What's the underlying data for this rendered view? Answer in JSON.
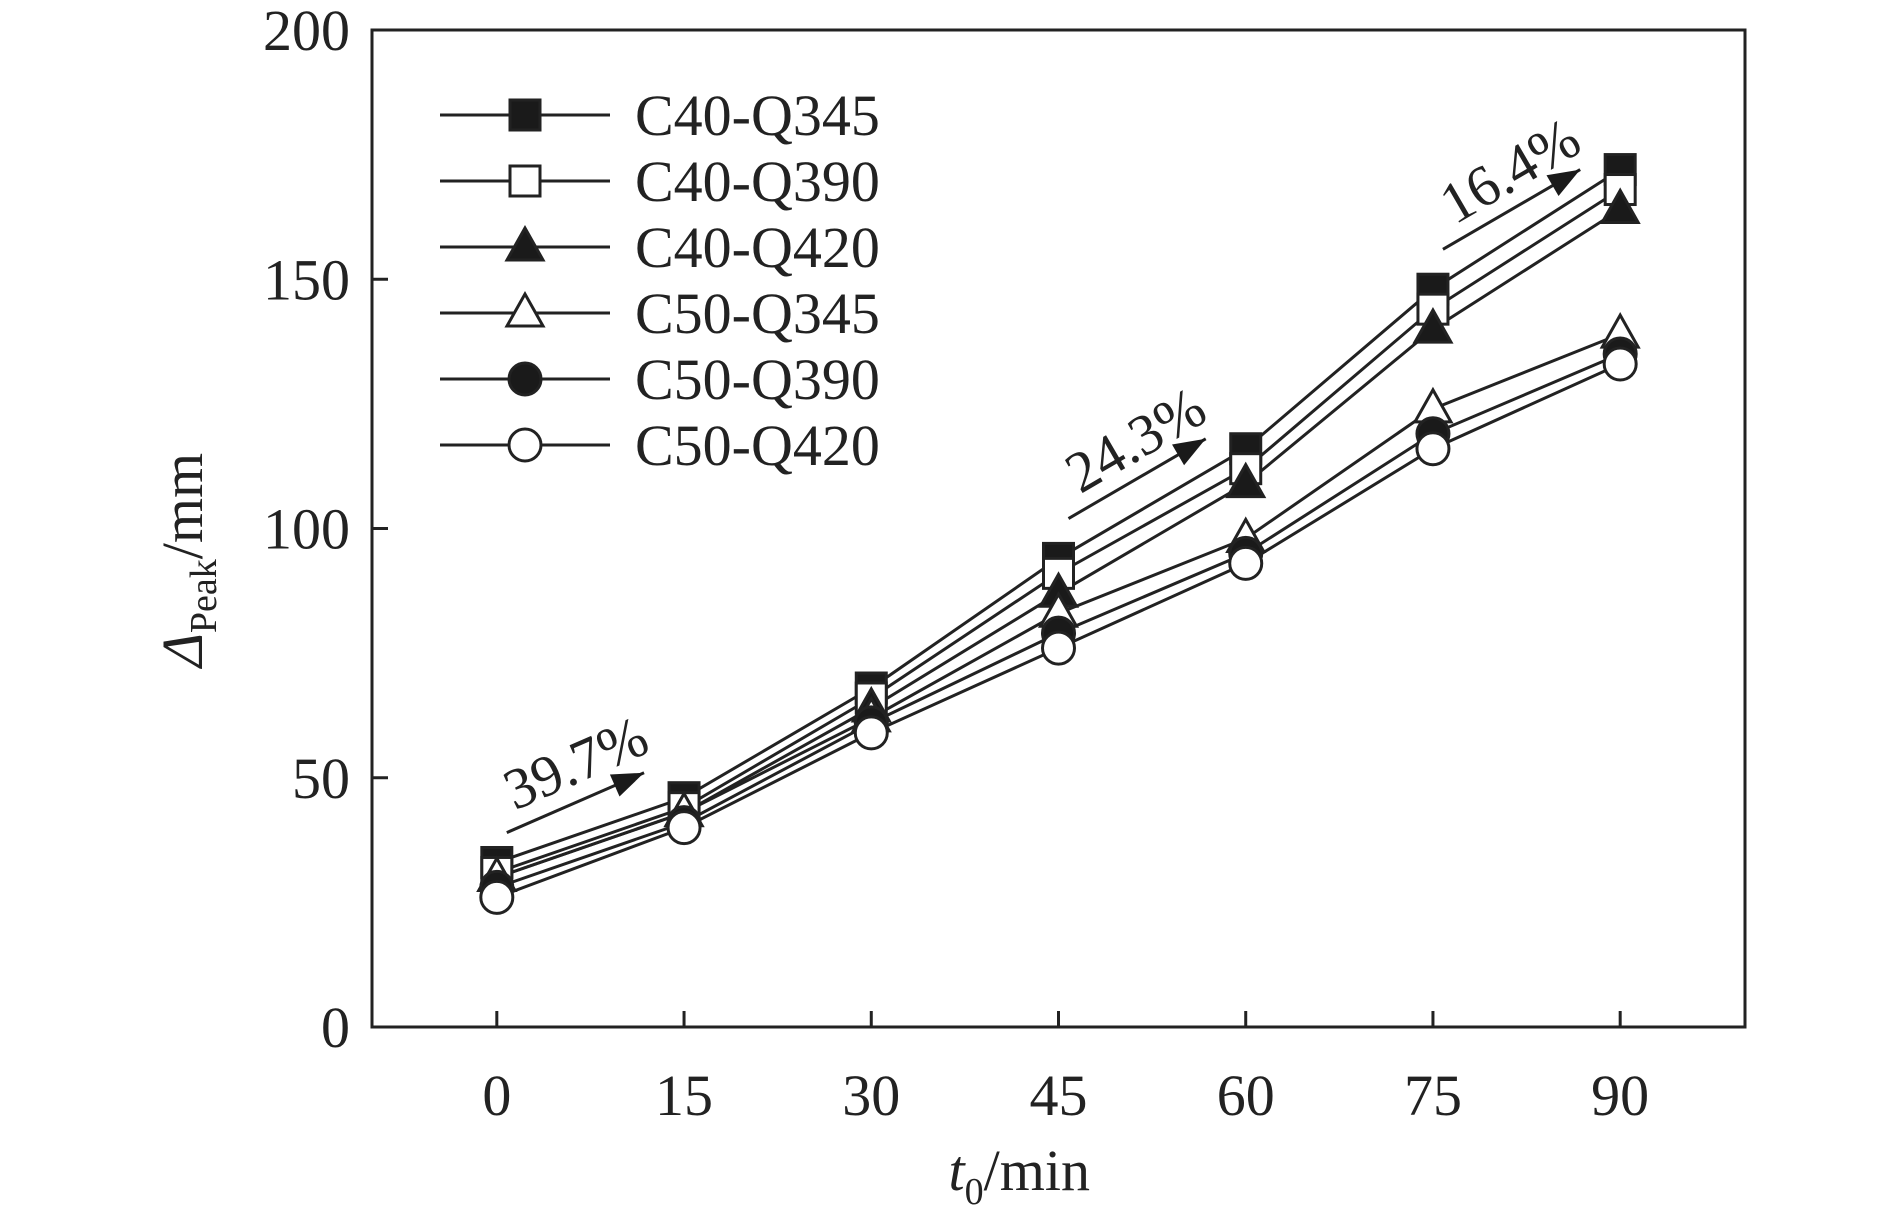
{
  "chart_data": {
    "type": "line",
    "x": [
      0,
      15,
      30,
      45,
      60,
      75,
      90
    ],
    "xlim": [
      -10,
      100
    ],
    "ylim": [
      0,
      200
    ],
    "x_ticks": [
      0,
      15,
      30,
      45,
      60,
      75,
      90
    ],
    "y_ticks": [
      0,
      50,
      100,
      150,
      200
    ],
    "x_tick_labels": [
      "0",
      "15",
      "30",
      "45",
      "60",
      "75",
      "90"
    ],
    "y_tick_labels": [
      "0",
      "50",
      "100",
      "150",
      "200"
    ],
    "xlabel": {
      "main": "t",
      "sub": "0",
      "unit": "/min"
    },
    "ylabel": {
      "main": "Δ",
      "sub": "Peak",
      "unit": "/mm"
    },
    "grid": false,
    "legend_position": "top-left",
    "series": [
      {
        "name": "C40-Q345",
        "marker": "square",
        "filled": true,
        "values": [
          33,
          46,
          68,
          94,
          116,
          148,
          172
        ]
      },
      {
        "name": "C40-Q390",
        "marker": "square",
        "filled": false,
        "values": [
          31,
          44,
          66,
          91,
          112,
          144,
          168
        ]
      },
      {
        "name": "C40-Q420",
        "marker": "triangle",
        "filled": true,
        "values": [
          30,
          43,
          64,
          87,
          109,
          140,
          164
        ]
      },
      {
        "name": "C50-Q345",
        "marker": "triangle",
        "filled": false,
        "values": [
          30,
          43,
          62,
          83,
          98,
          124,
          139
        ]
      },
      {
        "name": "C50-Q390",
        "marker": "circle",
        "filled": true,
        "values": [
          28,
          41,
          61,
          79,
          95,
          119,
          135
        ]
      },
      {
        "name": "C50-Q420",
        "marker": "circle",
        "filled": false,
        "values": [
          26,
          40,
          59,
          76,
          93,
          116,
          133
        ]
      }
    ],
    "annotations": [
      {
        "text": "39.7%",
        "from": [
          0,
          39
        ],
        "to": [
          15,
          51
        ]
      },
      {
        "text": "24.3%",
        "from": [
          45,
          102
        ],
        "to": [
          60,
          118
        ]
      },
      {
        "text": "16.4%",
        "from": [
          75,
          156
        ],
        "to": [
          90,
          172
        ]
      }
    ]
  },
  "colors": {
    "line": "#222222",
    "fill": "#1a1a1a",
    "background": "#ffffff",
    "open_marker_fill": "#ffffff"
  }
}
